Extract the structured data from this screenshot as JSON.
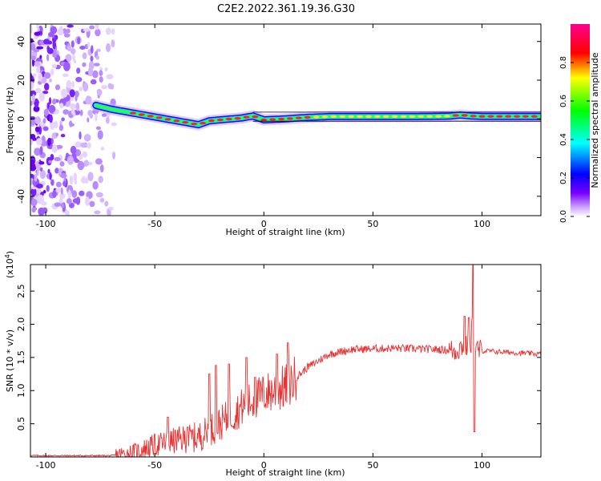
{
  "title": "C2E2.2022.361.19.36.G30",
  "chart_data": [
    {
      "type": "heatmap",
      "xlabel": "Height of straight line (km)",
      "ylabel": "Frequency (Hz)",
      "xlim": [
        -107,
        127
      ],
      "ylim": [
        -50,
        49
      ],
      "xticks": [
        -100,
        -50,
        0,
        50,
        100
      ],
      "yticks": [
        -40,
        -20,
        0,
        20,
        40
      ],
      "colorbar": {
        "label": "Normalized spectral amplitude",
        "range": [
          0,
          1
        ],
        "ticks": [
          "0.0",
          "0.2",
          "0.4",
          "0.6",
          "0.8"
        ],
        "stops": [
          "#ffffff",
          "#7a00ff",
          "#0000ff",
          "#00ffff",
          "#00ff00",
          "#ffff00",
          "#ff0000",
          "#ff00aa"
        ]
      },
      "ridge": {
        "x": [
          -77,
          -70,
          -60,
          -50,
          -40,
          -30,
          -25,
          -20,
          -10,
          -5,
          0,
          10,
          20,
          30,
          50,
          70,
          85,
          90,
          95,
          100,
          110,
          127
        ],
        "y": [
          7,
          5,
          3,
          1,
          -1,
          -3,
          -1,
          -0.5,
          0.5,
          1.5,
          -0.5,
          0,
          0.8,
          1.2,
          1.2,
          1.2,
          1.4,
          2,
          1.5,
          1.3,
          1.3,
          1.3
        ]
      },
      "noise_region_x": [
        -107,
        -68
      ]
    },
    {
      "type": "line",
      "xlabel": "Height of straight line (km)",
      "ylabel": "SNR (10 * v/v)",
      "yscale_note": "(x10",
      "yscale_exp": "4",
      "yscale_close": ")",
      "xlim": [
        -107,
        127
      ],
      "ylim": [
        0,
        2.9
      ],
      "xticks": [
        -100,
        -50,
        0,
        50,
        100
      ],
      "yticks": [
        "0.5",
        "1.0",
        "1.5",
        "2.0",
        "2.5"
      ],
      "color": "#e83232",
      "envelope": {
        "x": [
          -107,
          -70,
          -60,
          -50,
          -40,
          -30,
          -20,
          -10,
          0,
          10,
          20,
          30,
          40,
          60,
          80,
          88,
          92,
          95,
          96,
          97,
          100,
          127
        ],
        "y": [
          0.02,
          0.02,
          0.06,
          0.18,
          0.25,
          0.3,
          0.5,
          0.75,
          0.95,
          1.05,
          1.35,
          1.55,
          1.62,
          1.64,
          1.62,
          1.6,
          1.7,
          1.55,
          2.9,
          1.62,
          1.6,
          1.55
        ]
      },
      "spikes": [
        {
          "x": -25,
          "y": 1.25
        },
        {
          "x": -22,
          "y": 1.38
        },
        {
          "x": -16,
          "y": 1.4
        },
        {
          "x": -8,
          "y": 1.5
        },
        {
          "x": -4,
          "y": 1.2
        },
        {
          "x": 6,
          "y": 1.55
        },
        {
          "x": 11,
          "y": 1.72
        },
        {
          "x": -44,
          "y": 0.6
        },
        {
          "x": -35,
          "y": 0.45
        },
        {
          "x": 92,
          "y": 2.12
        },
        {
          "x": 94,
          "y": 2.1
        },
        {
          "x": 96,
          "y": 2.9
        },
        {
          "x": 96.5,
          "y": 0.38
        }
      ]
    }
  ]
}
